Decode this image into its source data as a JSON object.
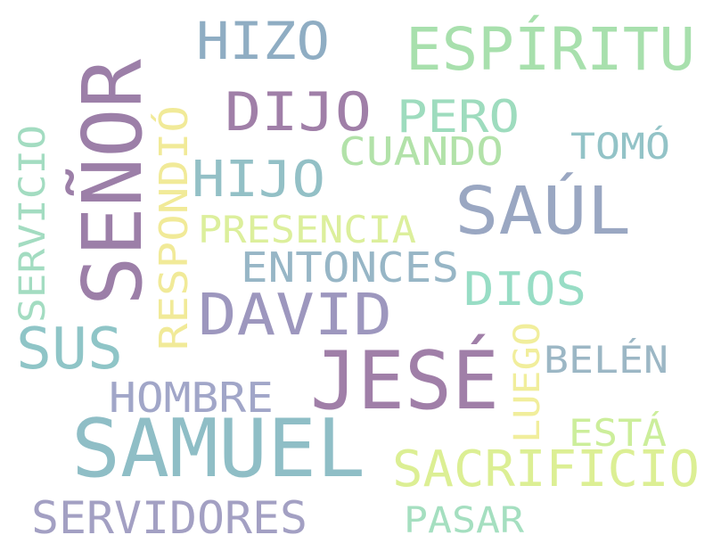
{
  "words": [
    {
      "id": "senor",
      "text": "SEÑOR",
      "color": "#9c7fa8"
    },
    {
      "id": "hizo",
      "text": "HIZO",
      "color": "#8fadc3"
    },
    {
      "id": "espiritu",
      "text": "ESPÍRITU",
      "color": "#a8e0ad"
    },
    {
      "id": "dijo",
      "text": "DIJO",
      "color": "#a07fa8"
    },
    {
      "id": "pero",
      "text": "PERO",
      "color": "#9edcbe"
    },
    {
      "id": "respondio",
      "text": "RESPONDIÓ",
      "color": "#f1ea98"
    },
    {
      "id": "servicio",
      "text": "SERVICIO",
      "color": "#a3dcc1"
    },
    {
      "id": "cuando",
      "text": "CUANDO",
      "color": "#b2e2a9"
    },
    {
      "id": "tomo",
      "text": "TOMÓ",
      "color": "#93c3c7"
    },
    {
      "id": "hijo",
      "text": "HIJO",
      "color": "#93c0c6"
    },
    {
      "id": "saul",
      "text": "SAÚL",
      "color": "#9aa7c2"
    },
    {
      "id": "presencia",
      "text": "PRESENCIA",
      "color": "#dcef9c"
    },
    {
      "id": "entonces",
      "text": "ENTONCES",
      "color": "#97b6c6"
    },
    {
      "id": "dios",
      "text": "DIOS",
      "color": "#98ddc5"
    },
    {
      "id": "david",
      "text": "DAVID",
      "color": "#9d97be"
    },
    {
      "id": "sus",
      "text": "SUS",
      "color": "#8fc5c7"
    },
    {
      "id": "luego",
      "text": "LUEGO",
      "color": "#f1ee9c"
    },
    {
      "id": "belen",
      "text": "BELÉN",
      "color": "#9cb7c5"
    },
    {
      "id": "jese",
      "text": "JESÉ",
      "color": "#a07fa8"
    },
    {
      "id": "hombre",
      "text": "HOMBRE",
      "color": "#a1a6c8"
    },
    {
      "id": "esta",
      "text": "ESTÁ",
      "color": "#ccee9b"
    },
    {
      "id": "samuel",
      "text": "SAMUEL",
      "color": "#8fbec6"
    },
    {
      "id": "sacrificio",
      "text": "SACRIFICIO",
      "color": "#dcef94"
    },
    {
      "id": "servidores",
      "text": "SERVIDORES",
      "color": "#a3a0c3"
    },
    {
      "id": "pasar",
      "text": "PASAR",
      "color": "#a5dfc0"
    }
  ]
}
